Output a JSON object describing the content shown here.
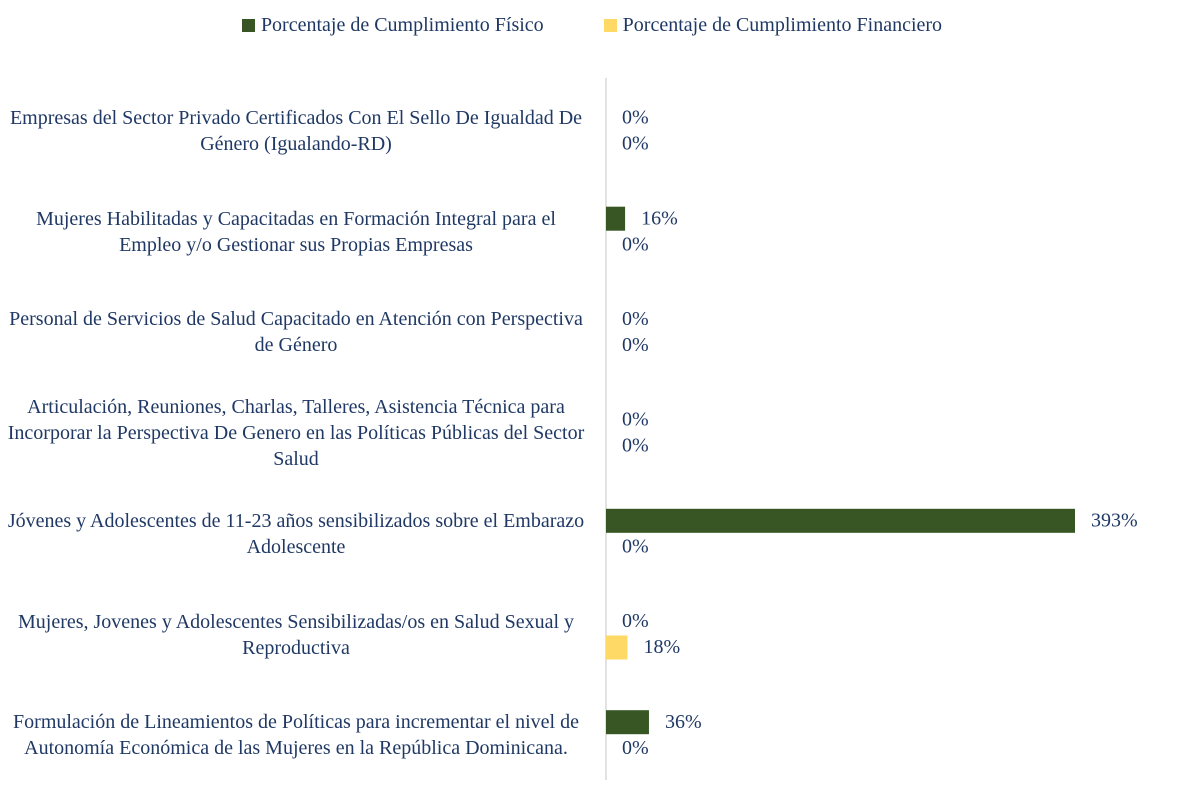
{
  "chart_data": {
    "type": "bar",
    "orientation": "horizontal",
    "categories": [
      "Empresas del Sector Privado Certificados Con El Sello De Igualdad De Género (Igualando-RD)",
      "Mujeres Habilitadas y Capacitadas en Formación Integral para el Empleo y/o Gestionar sus Propias Empresas",
      "Personal de Servicios de Salud Capacitado en Atención con Perspectiva de Género",
      "Articulación, Reuniones, Charlas, Talleres, Asistencia Técnica para Incorporar la Perspectiva De Genero en las Políticas Públicas del Sector Salud",
      "Jóvenes y Adolescentes de 11-23 años sensibilizados sobre el Embarazo Adolescente",
      "Mujeres, Jovenes y Adolescentes Sensibilizadas/os en Salud Sexual y Reproductiva",
      "Formulación de Lineamientos de Políticas para incrementar el nivel de Autonomía Económica de las Mujeres en la República Dominicana."
    ],
    "series": [
      {
        "name": "Porcentaje de Cumplimiento Físico",
        "color": "#375623",
        "values": [
          0,
          16,
          0,
          0,
          393,
          0,
          36
        ],
        "value_labels": [
          "0%",
          "16%",
          "0%",
          "0%",
          "393%",
          "0%",
          "36%"
        ]
      },
      {
        "name": "Porcentaje de Cumplimiento Financiero",
        "color": "#ffd966",
        "values": [
          0,
          0,
          0,
          0,
          0,
          18,
          0
        ],
        "value_labels": [
          "0%",
          "0%",
          "0%",
          "0%",
          "0%",
          "18%",
          "0%"
        ]
      }
    ],
    "legend": "top"
  }
}
